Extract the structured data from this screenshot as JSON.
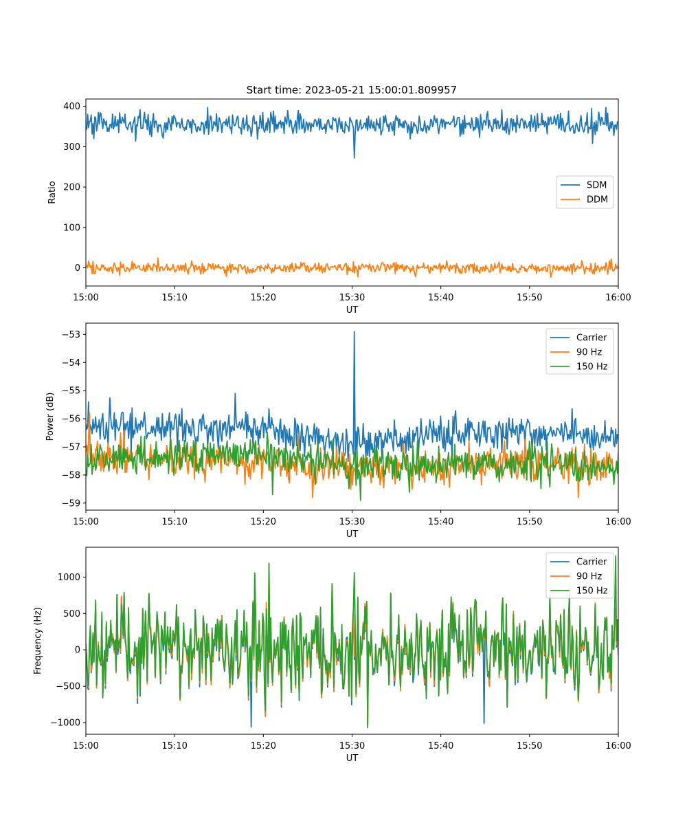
{
  "figure": {
    "title": "Start time: 2023-05-21 15:00:01.809957"
  },
  "chart_data": [
    {
      "type": "line",
      "xlabel": "UT",
      "ylabel": "Ratio",
      "xlim": [
        "15:00",
        "16:00"
      ],
      "ylim": [
        -45,
        418
      ],
      "x_ticks": [
        "15:00",
        "15:10",
        "15:20",
        "15:30",
        "15:40",
        "15:50",
        "16:00"
      ],
      "y_ticks": [
        {
          "value": 0,
          "label": "0"
        },
        {
          "value": 100,
          "label": "100"
        },
        {
          "value": 200,
          "label": "200"
        },
        {
          "value": 300,
          "label": "300"
        },
        {
          "value": 400,
          "label": "400"
        }
      ],
      "legend_position": "center-right",
      "series": [
        {
          "name": "SDM",
          "color": "#1f77b4",
          "baseline": 355,
          "noise": 14,
          "spikes": [
            {
              "minute": 30.3,
              "value": 272
            },
            {
              "minute": 13.7,
              "value": 397
            },
            {
              "minute": 58.6,
              "value": 397
            },
            {
              "minute": 8.7,
              "value": 321
            }
          ]
        },
        {
          "name": "DDM",
          "color": "#ff7f0e",
          "baseline": 0,
          "noise": 7,
          "spikes": [
            {
              "minute": 8.1,
              "value": 24
            },
            {
              "minute": 30.7,
              "value": -22
            },
            {
              "minute": 37.2,
              "value": -22
            },
            {
              "minute": 59.2,
              "value": 22
            }
          ]
        }
      ]
    },
    {
      "type": "line",
      "xlabel": "UT",
      "ylabel": "Power (dB)",
      "xlim": [
        "15:00",
        "16:00"
      ],
      "ylim": [
        -59.25,
        -52.6
      ],
      "x_ticks": [
        "15:00",
        "15:10",
        "15:20",
        "15:30",
        "15:40",
        "15:50",
        "16:00"
      ],
      "y_ticks": [
        {
          "value": -59,
          "label": "−59"
        },
        {
          "value": -58,
          "label": "−58"
        },
        {
          "value": -57,
          "label": "−57"
        },
        {
          "value": -56,
          "label": "−56"
        },
        {
          "value": -55,
          "label": "−55"
        },
        {
          "value": -54,
          "label": "−54"
        },
        {
          "value": -53,
          "label": "−53"
        }
      ],
      "legend_position": "top-right",
      "series": [
        {
          "name": "Carrier",
          "color": "#1f77b4",
          "trend": [
            [
              0,
              -56.3
            ],
            [
              20,
              -56.4
            ],
            [
              30,
              -56.9
            ],
            [
              45,
              -56.5
            ],
            [
              60,
              -56.6
            ]
          ],
          "noise": 0.3,
          "spikes": [
            {
              "minute": 30.3,
              "value": -52.9
            },
            {
              "minute": 0.3,
              "value": -55.4
            },
            {
              "minute": 16.8,
              "value": -55.1
            }
          ]
        },
        {
          "name": "90 Hz",
          "color": "#ff7f0e",
          "trend": [
            [
              0,
              -57.3
            ],
            [
              20,
              -57.5
            ],
            [
              30,
              -57.8
            ],
            [
              45,
              -57.6
            ],
            [
              60,
              -57.6
            ]
          ],
          "noise": 0.32,
          "spikes": [
            {
              "minute": 0.4,
              "value": -55.8
            },
            {
              "minute": 25.5,
              "value": -58.8
            },
            {
              "minute": 55.5,
              "value": -58.8
            }
          ]
        },
        {
          "name": "150 Hz",
          "color": "#2ca02c",
          "trend": [
            [
              0,
              -57.5
            ],
            [
              20,
              -57.2
            ],
            [
              30,
              -57.7
            ],
            [
              45,
              -57.6
            ],
            [
              60,
              -57.7
            ]
          ],
          "noise": 0.32,
          "spikes": [
            {
              "minute": 31.0,
              "value": -58.9
            },
            {
              "minute": 21.0,
              "value": -58.7
            }
          ]
        }
      ]
    },
    {
      "type": "line",
      "xlabel": "UT",
      "ylabel": "Frequency (Hz)",
      "xlim": [
        "15:00",
        "16:00"
      ],
      "ylim": [
        -1160,
        1410
      ],
      "x_ticks": [
        "15:00",
        "15:10",
        "15:20",
        "15:30",
        "15:40",
        "15:50",
        "16:00"
      ],
      "y_ticks": [
        {
          "value": -1000,
          "label": "−1000"
        },
        {
          "value": -500,
          "label": "−500"
        },
        {
          "value": 0,
          "label": "0"
        },
        {
          "value": 500,
          "label": "500"
        },
        {
          "value": 1000,
          "label": "1000"
        }
      ],
      "legend_position": "top-right",
      "series": [
        {
          "name": "Carrier",
          "color": "#1f77b4",
          "baseline": 0,
          "noise": 330,
          "spikes": [
            {
              "minute": 18.6,
              "value": -1060
            },
            {
              "minute": 44.9,
              "value": -1010
            }
          ]
        },
        {
          "name": "90 Hz",
          "color": "#ff7f0e",
          "baseline": 20,
          "noise": 330,
          "spikes": [
            {
              "minute": 20.6,
              "value": 1170
            }
          ]
        },
        {
          "name": "150 Hz",
          "color": "#2ca02c",
          "baseline": 40,
          "noise": 330,
          "spikes": [
            {
              "minute": 20.6,
              "value": 1190
            },
            {
              "minute": 59.7,
              "value": 1290
            },
            {
              "minute": 30.3,
              "value": 1060
            }
          ]
        }
      ]
    }
  ]
}
